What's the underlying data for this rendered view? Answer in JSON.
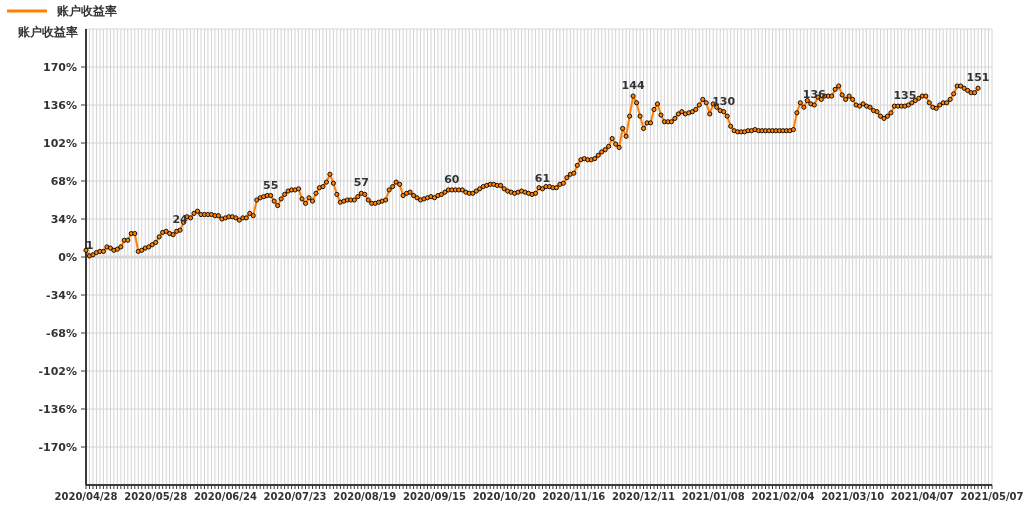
{
  "chart_data": {
    "type": "line",
    "ylabel": "账户收益率",
    "categories": [
      "2020/04/28",
      null,
      null,
      null,
      null,
      null,
      null,
      null,
      null,
      null,
      null,
      null,
      null,
      null,
      null,
      null,
      null,
      null,
      null,
      null,
      "2020/05/28",
      null,
      null,
      null,
      null,
      null,
      null,
      null,
      null,
      null,
      null,
      null,
      null,
      null,
      null,
      null,
      null,
      null,
      null,
      null,
      "2020/06/24",
      null,
      null,
      null,
      null,
      null,
      null,
      null,
      null,
      null,
      null,
      null,
      null,
      null,
      null,
      null,
      null,
      null,
      null,
      null,
      "2020/07/23",
      null,
      null,
      null,
      null,
      null,
      null,
      null,
      null,
      null,
      null,
      null,
      null,
      null,
      null,
      null,
      null,
      null,
      null,
      null,
      "2020/08/19",
      null,
      null,
      null,
      null,
      null,
      null,
      null,
      null,
      null,
      null,
      null,
      null,
      null,
      null,
      null,
      null,
      null,
      null,
      null,
      "2020/09/15",
      null,
      null,
      null,
      null,
      null,
      null,
      null,
      null,
      null,
      null,
      null,
      null,
      null,
      null,
      null,
      null,
      null,
      null,
      null,
      "2020/10/20",
      null,
      null,
      null,
      null,
      null,
      null,
      null,
      null,
      null,
      null,
      null,
      null,
      null,
      null,
      null,
      null,
      null,
      null,
      null,
      "2020/11/16",
      null,
      null,
      null,
      null,
      null,
      null,
      null,
      null,
      null,
      null,
      null,
      null,
      null,
      null,
      null,
      null,
      null,
      null,
      null,
      "2020/12/11",
      null,
      null,
      null,
      null,
      null,
      null,
      null,
      null,
      null,
      null,
      null,
      null,
      null,
      null,
      null,
      null,
      null,
      null,
      null,
      "2021/01/08",
      null,
      null,
      null,
      null,
      null,
      null,
      null,
      null,
      null,
      null,
      null,
      null,
      null,
      null,
      null,
      null,
      null,
      null,
      null,
      "2021/02/04",
      null,
      null,
      null,
      null,
      null,
      null,
      null,
      null,
      null,
      null,
      null,
      null,
      null,
      null,
      null,
      null,
      null,
      null,
      null,
      "2021/03/10",
      null,
      null,
      null,
      null,
      null,
      null,
      null,
      null,
      null,
      null,
      null,
      null,
      null,
      null,
      null,
      null,
      null,
      null,
      null,
      "2021/04/07",
      null,
      null,
      null,
      null,
      null,
      null,
      null,
      null,
      null,
      null,
      null,
      null,
      null,
      null,
      null,
      null,
      null,
      null,
      null,
      "2021/05/07"
    ],
    "series": [
      {
        "name": "账户收益率",
        "color": "#ff8000",
        "values": [
          6,
          1,
          2,
          4,
          5,
          5,
          9,
          8,
          6,
          7,
          9,
          15,
          15,
          21,
          21,
          5,
          6,
          8,
          9,
          11,
          13,
          18,
          22,
          23,
          21,
          20,
          23,
          24,
          31,
          36,
          35,
          39,
          41,
          38,
          38,
          38,
          38,
          37,
          37,
          34,
          35,
          36,
          36,
          35,
          33,
          35,
          35,
          39,
          37,
          51,
          53,
          54,
          55,
          55,
          50,
          46,
          52,
          56,
          59,
          60,
          60,
          61,
          52,
          48,
          53,
          50,
          57,
          62,
          63,
          67,
          74,
          66,
          56,
          49,
          50,
          51,
          51,
          51,
          54,
          57,
          56,
          51,
          48,
          48,
          49,
          50,
          51,
          60,
          63,
          67,
          65,
          55,
          57,
          58,
          55,
          53,
          51,
          52,
          53,
          54,
          53,
          55,
          56,
          58,
          60,
          60,
          60,
          60,
          60,
          58,
          57,
          57,
          59,
          61,
          63,
          64,
          65,
          65,
          64,
          64,
          61,
          59,
          58,
          57,
          58,
          59,
          58,
          57,
          56,
          57,
          62,
          61,
          63,
          63,
          62,
          62,
          65,
          66,
          71,
          74,
          75,
          82,
          87,
          88,
          87,
          87,
          88,
          91,
          94,
          96,
          99,
          106,
          101,
          98,
          115,
          108,
          126,
          144,
          138,
          126,
          115,
          120,
          120,
          132,
          137,
          127,
          121,
          121,
          121,
          124,
          128,
          130,
          128,
          129,
          130,
          132,
          136,
          141,
          138,
          128,
          137,
          134,
          131,
          130,
          126,
          117,
          113,
          112,
          112,
          112,
          113,
          113,
          114,
          113,
          113,
          113,
          113,
          113,
          113,
          113,
          113,
          113,
          113,
          114,
          129,
          138,
          134,
          140,
          137,
          136,
          143,
          141,
          144,
          144,
          144,
          150,
          153,
          145,
          141,
          144,
          141,
          136,
          135,
          137,
          135,
          134,
          131,
          130,
          126,
          124,
          126,
          129,
          135,
          135,
          135,
          135,
          136,
          138,
          140,
          142,
          144,
          144,
          138,
          134,
          133,
          136,
          138,
          138,
          141,
          146,
          153,
          153,
          151,
          149,
          147,
          147,
          151,
          null,
          null,
          null,
          null
        ],
        "value_labels": [
          null,
          "1",
          null,
          null,
          null,
          null,
          null,
          null,
          null,
          null,
          null,
          null,
          null,
          null,
          null,
          null,
          null,
          null,
          null,
          null,
          null,
          null,
          null,
          null,
          null,
          null,
          null,
          "24",
          null,
          null,
          null,
          null,
          null,
          null,
          null,
          null,
          null,
          null,
          null,
          null,
          null,
          null,
          null,
          null,
          null,
          null,
          null,
          null,
          null,
          null,
          null,
          null,
          null,
          "55",
          null,
          null,
          null,
          null,
          null,
          null,
          null,
          null,
          null,
          null,
          null,
          null,
          null,
          null,
          null,
          null,
          null,
          null,
          null,
          null,
          null,
          null,
          null,
          null,
          null,
          "57",
          null,
          null,
          null,
          null,
          null,
          null,
          null,
          null,
          null,
          null,
          null,
          null,
          null,
          null,
          null,
          null,
          null,
          null,
          null,
          null,
          null,
          null,
          null,
          null,
          null,
          "60",
          null,
          null,
          null,
          null,
          null,
          null,
          null,
          null,
          null,
          null,
          null,
          null,
          null,
          null,
          null,
          null,
          null,
          null,
          null,
          null,
          null,
          null,
          null,
          null,
          null,
          "61",
          null,
          null,
          null,
          null,
          null,
          null,
          null,
          null,
          null,
          null,
          null,
          null,
          null,
          null,
          null,
          null,
          null,
          null,
          null,
          null,
          null,
          null,
          null,
          null,
          null,
          "144",
          null,
          null,
          null,
          null,
          null,
          null,
          null,
          null,
          null,
          null,
          null,
          null,
          null,
          null,
          null,
          null,
          null,
          null,
          null,
          null,
          null,
          null,
          null,
          null,
          null,
          "130",
          null,
          null,
          null,
          null,
          null,
          null,
          null,
          null,
          null,
          null,
          null,
          null,
          null,
          null,
          null,
          null,
          null,
          null,
          null,
          null,
          null,
          null,
          null,
          null,
          null,
          "136",
          null,
          null,
          null,
          null,
          null,
          null,
          null,
          null,
          null,
          null,
          null,
          null,
          null,
          null,
          null,
          null,
          null,
          null,
          null,
          null,
          null,
          null,
          null,
          null,
          null,
          "135",
          null,
          null,
          null,
          null,
          null,
          null,
          null,
          null,
          null,
          null,
          null,
          null,
          null,
          null,
          null,
          null,
          null,
          null,
          null,
          null,
          "151",
          null,
          null,
          null,
          null
        ]
      }
    ],
    "ylim": [
      -204,
      204
    ],
    "yticks": [
      {
        "value": -170,
        "label": "-170%"
      },
      {
        "value": -136,
        "label": "-136%"
      },
      {
        "value": -102,
        "label": "-102%"
      },
      {
        "value": -68,
        "label": "-68%"
      },
      {
        "value": -34,
        "label": "-34%"
      },
      {
        "value": 0,
        "label": "0%"
      },
      {
        "value": 34,
        "label": "34%"
      },
      {
        "value": 68,
        "label": "68%"
      },
      {
        "value": 102,
        "label": "102%"
      },
      {
        "value": 136,
        "label": "136%"
      },
      {
        "value": 170,
        "label": "170%"
      }
    ],
    "grid": true,
    "legend": "top left",
    "marker": "circle",
    "ref_lines": [
      {
        "axis": "y",
        "value": 0,
        "color": "#d9d9d9"
      }
    ]
  }
}
